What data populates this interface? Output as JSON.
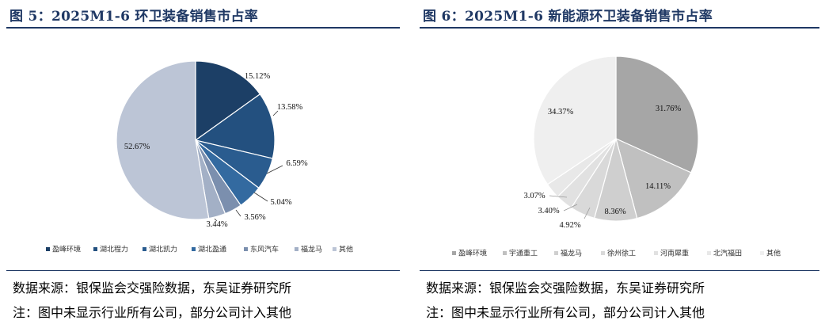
{
  "charts": [
    {
      "title": "图 5：2025M1-6 环卫装备销售市占率",
      "source": "数据来源：银保监会交强险数据，东吴证券研究所",
      "note": "注：图中未显示行业所有公司，部分公司计入其他"
    },
    {
      "title": "图 6：2025M1-6 新能源环卫装备销售市占率",
      "source": "数据来源：银保监会交强险数据，东吴证券研究所",
      "note": "注：图中未显示行业所有公司，部分公司计入其他"
    }
  ],
  "chart_data": [
    {
      "type": "pie",
      "unit": "%",
      "legend_position": "bottom",
      "categories": [
        "盈峰环境",
        "湖北程力",
        "湖北凯力",
        "湖北盈通",
        "东风汽车",
        "福龙马",
        "其他"
      ],
      "values": [
        15.12,
        13.58,
        6.59,
        5.04,
        3.56,
        3.44,
        52.67
      ],
      "labels": [
        "15.12%",
        "13.58%",
        "6.59%",
        "5.04%",
        "3.56%",
        "3.44%",
        "52.67%"
      ],
      "colors": [
        "#1c3f66",
        "#23507f",
        "#2a5c8f",
        "#336aa0",
        "#7b8fae",
        "#a3b0c6",
        "#bcc5d6"
      ]
    },
    {
      "type": "pie",
      "unit": "%",
      "legend_position": "bottom",
      "categories": [
        "盈峰环境",
        "宇通重工",
        "福龙马",
        "徐州徐工",
        "河南犀重",
        "北汽福田",
        "其他"
      ],
      "values": [
        31.76,
        14.11,
        8.36,
        4.92,
        3.4,
        3.07,
        34.37
      ],
      "labels": [
        "31.76%",
        "14.11%",
        "8.36%",
        "4.92%",
        "3.40%",
        "3.07%",
        "34.37%"
      ],
      "colors": [
        "#a6a6a6",
        "#c0c0c0",
        "#cfcfcf",
        "#d9d9d9",
        "#e1e1e1",
        "#e8e8e8",
        "#efefef"
      ]
    }
  ]
}
